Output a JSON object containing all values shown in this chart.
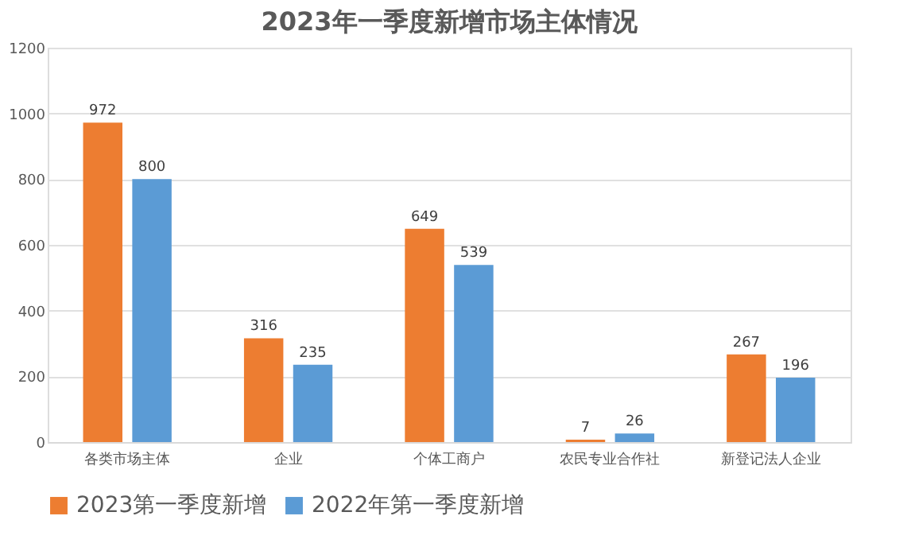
{
  "chart_data": {
    "type": "bar",
    "title": "2023年一季度新增市场主体情况",
    "categories": [
      "各类市场主体",
      "企业",
      "个体工商户",
      "农民专业合作社",
      "新登记法人企业"
    ],
    "series": [
      {
        "name": "2023第一季度新增",
        "color": "#ed7d31",
        "values": [
          972,
          316,
          649,
          7,
          267
        ]
      },
      {
        "name": "2022年第一季度新增",
        "color": "#5b9bd5",
        "values": [
          800,
          235,
          539,
          26,
          196
        ]
      }
    ],
    "ylim": [
      0,
      1200
    ],
    "yticks": [
      0,
      200,
      400,
      600,
      800,
      1000,
      1200
    ],
    "grid": "y",
    "legend": "bottom",
    "data_labels": true
  }
}
